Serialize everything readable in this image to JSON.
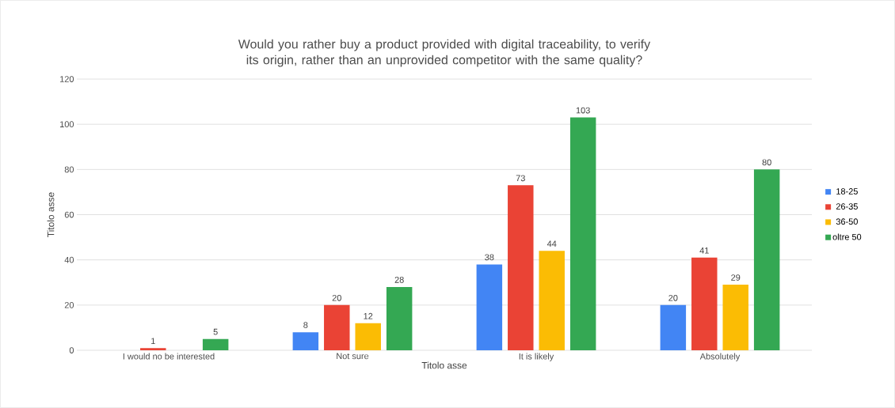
{
  "chart_data": {
    "type": "bar",
    "title": "Would you rather buy a product provided with digital traceability, to verify its origin, rather than an unprovided competitor with the same quality?",
    "xlabel": "Titolo asse",
    "ylabel": "Titolo asse",
    "categories": [
      "I would no be interested",
      "Not sure",
      "It is likely",
      "Absolutely"
    ],
    "series": [
      {
        "name": "18-25",
        "color": "#4285f4",
        "values": [
          null,
          8,
          38,
          20
        ]
      },
      {
        "name": "26-35",
        "color": "#ea4335",
        "values": [
          1,
          20,
          73,
          41
        ]
      },
      {
        "name": "36-50",
        "color": "#fbbc04",
        "values": [
          null,
          12,
          44,
          29
        ]
      },
      {
        "name": "oltre 50",
        "color": "#34a853",
        "values": [
          5,
          28,
          103,
          80
        ]
      }
    ],
    "ylim": [
      0,
      120
    ],
    "yticks": [
      0,
      20,
      40,
      60,
      80,
      100,
      120
    ],
    "grid": "y",
    "legend": "right",
    "data_labels": true
  }
}
